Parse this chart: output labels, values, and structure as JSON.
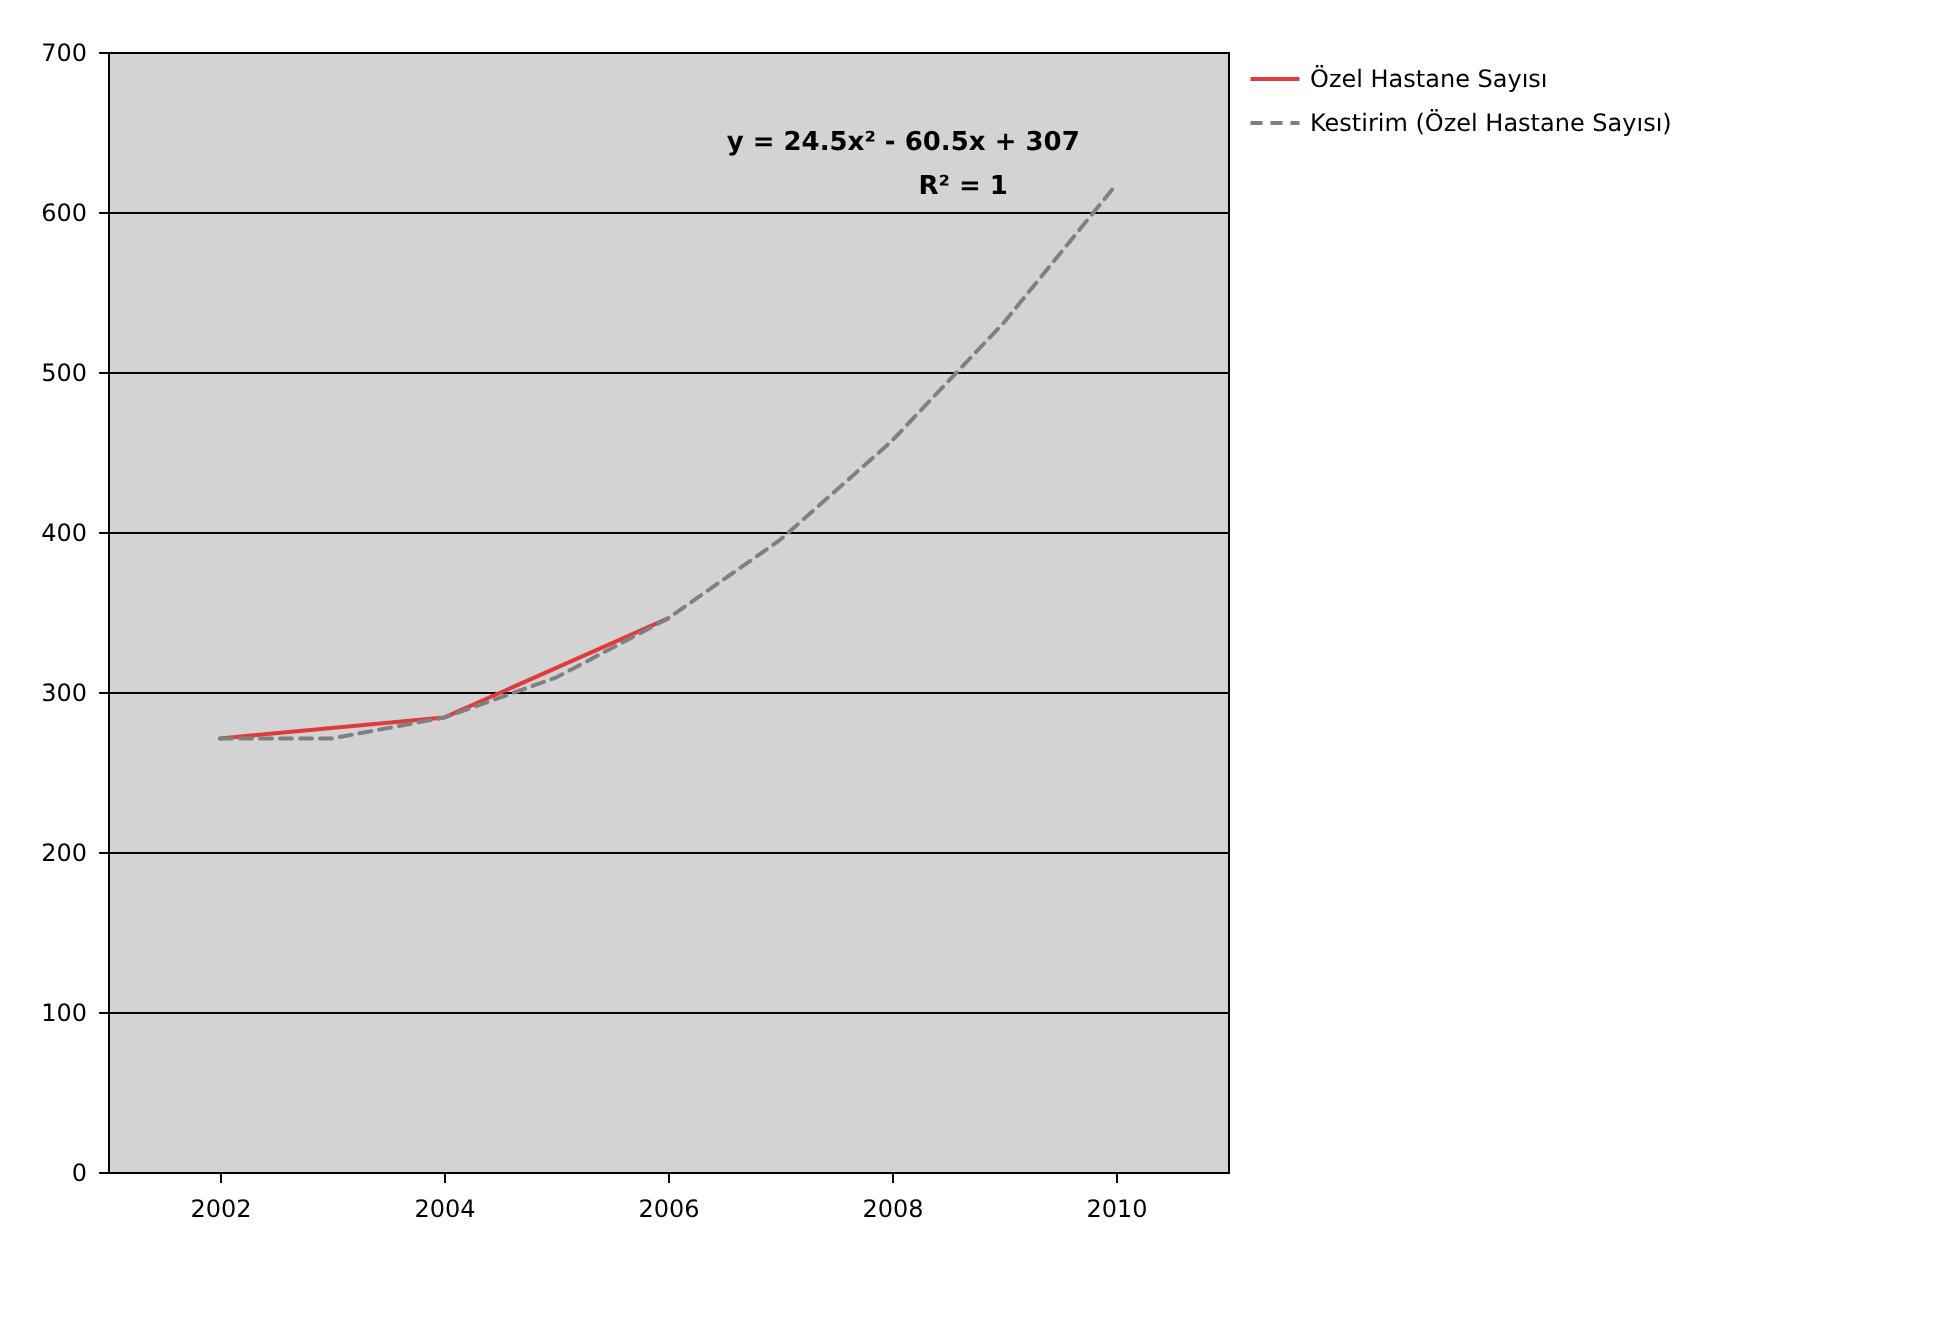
{
  "chart_data": {
    "type": "line",
    "x": [
      2002,
      2004,
      2006
    ],
    "series": [
      {
        "name": "Özel Hastane Sayısı",
        "color": "#e03a3a",
        "values": [
          271,
          284,
          346
        ],
        "line_style": "solid"
      },
      {
        "name": "Kestirim (Özel Hastane Sayısı)",
        "color": "#808080",
        "type": "line",
        "line_style": "dashed",
        "x": [
          2002,
          2003,
          2004,
          2005,
          2006,
          2007,
          2008,
          2009,
          2010
        ],
        "values": [
          271,
          271,
          284,
          309,
          346,
          395,
          457,
          531,
          617
        ]
      }
    ],
    "xlim": [
      2001,
      2011
    ],
    "xticks": [
      2002,
      2004,
      2006,
      2008,
      2010
    ],
    "ylim": [
      0,
      700
    ],
    "yticks": [
      0,
      100,
      200,
      300,
      400,
      500,
      600,
      700
    ],
    "grid": "y",
    "legend": "right",
    "marker": "none",
    "annotations": [
      "y = 24.5x² - 60.5x + 307",
      "R² = 1"
    ]
  }
}
